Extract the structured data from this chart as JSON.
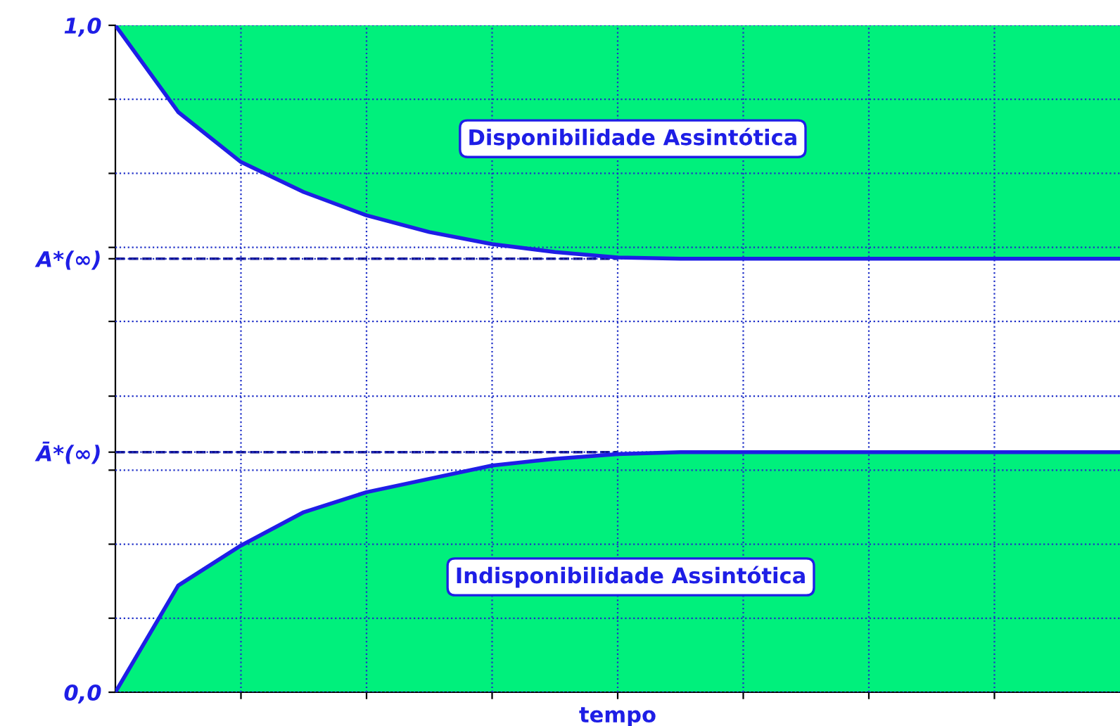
{
  "chart_data": {
    "type": "line",
    "xlabel": "tempo",
    "categories": [
      null,
      null,
      null,
      null,
      null,
      null,
      null,
      null,
      null,
      null,
      null,
      null,
      null,
      null,
      null,
      null,
      null
    ],
    "series": [
      {
        "color": "#1e1ee6",
        "values": [
          1.0,
          0.87,
          0.795,
          0.75,
          0.715,
          0.69,
          0.672,
          0.66,
          0.652,
          0.65,
          0.65,
          0.65,
          0.65,
          0.65,
          0.65,
          0.65,
          0.65
        ],
        "lower": [
          1.0,
          0.87,
          0.795,
          0.75,
          0.715,
          0.69,
          0.672,
          0.66,
          0.652,
          0.65,
          0.65,
          0.65,
          0.65,
          0.65,
          0.65,
          0.65,
          0.65
        ],
        "upper": [
          1,
          1,
          1,
          1,
          1,
          1,
          1,
          1,
          1,
          1,
          1,
          1,
          1,
          1,
          1,
          1,
          1
        ]
      },
      {
        "type": "area",
        "color": "#00f07c",
        "values": [
          0.0,
          0.16,
          0.22,
          0.27,
          0.3,
          0.32,
          0.34,
          0.35,
          0.357,
          0.36,
          0.36,
          0.36,
          0.36,
          0.36,
          0.36,
          0.36,
          0.36
        ]
      }
    ],
    "ylim": [
      0,
      1
    ],
    "yticks": [
      {
        "value": 0,
        "label": "0,0"
      },
      {
        "value": 0.111,
        "label": null
      },
      {
        "value": 0.222,
        "label": null
      },
      {
        "value": 0.333,
        "label": null
      },
      {
        "value": 0.36,
        "label": "Ā*(∞)"
      },
      {
        "value": 0.444,
        "label": null
      },
      {
        "value": 0.556,
        "label": null
      },
      {
        "value": 0.65,
        "label": "A*(∞)"
      },
      {
        "value": 0.667,
        "label": null
      },
      {
        "value": 0.778,
        "label": null
      },
      {
        "value": 0.889,
        "label": null
      },
      {
        "value": 1,
        "label": "1,0"
      }
    ],
    "tick_labels": "y",
    "grid": true,
    "ref_lines": [
      {
        "axis": "y",
        "value": 0.65,
        "color": "#10108c",
        "line_style": "dashed"
      },
      {
        "axis": "y",
        "value": 0.36,
        "color": "#10108c",
        "line_style": "dashed"
      }
    ],
    "annotations": [
      "Disponibilidade Assintótica",
      "Indisponibilidade Assintótica"
    ]
  }
}
